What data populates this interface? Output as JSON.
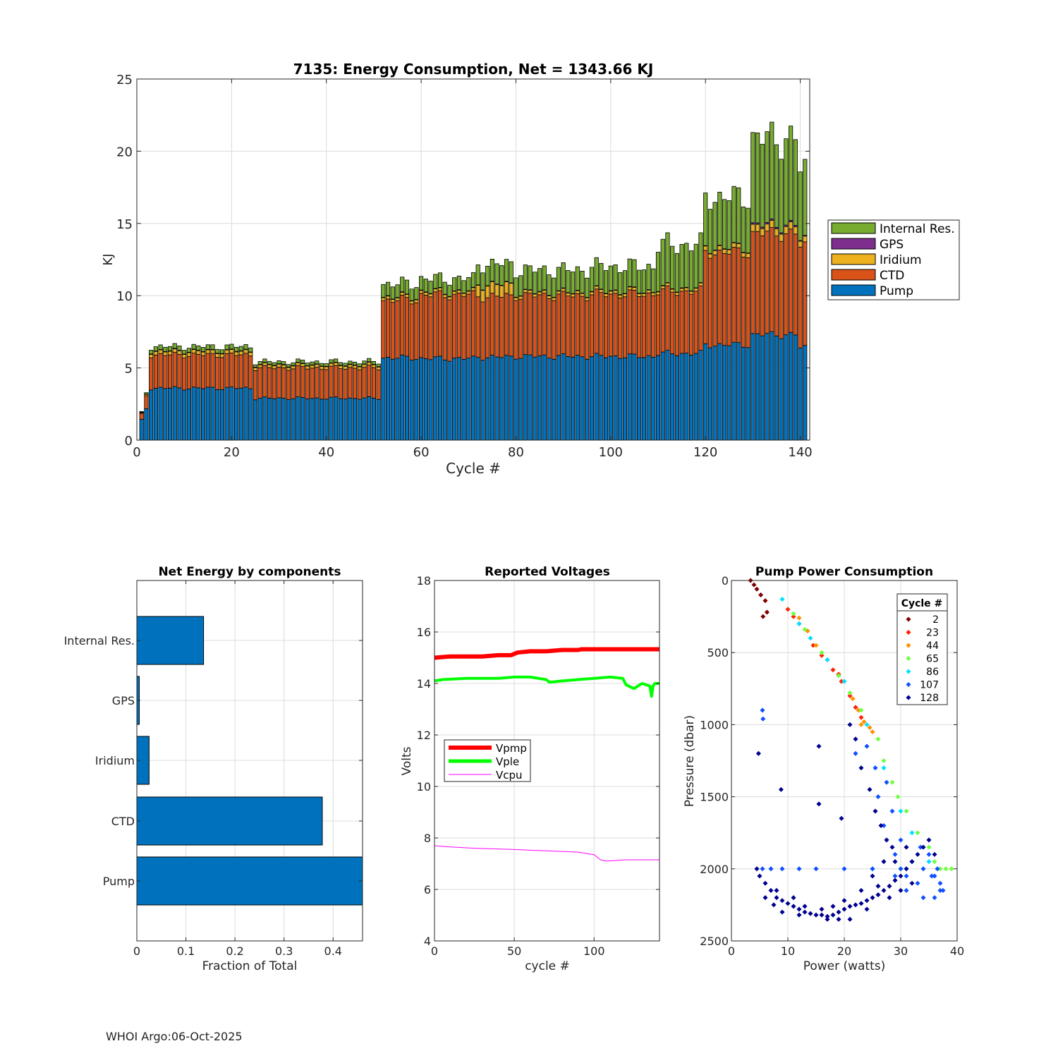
{
  "footer": "WHOI Argo:06-Oct-2025",
  "colors": {
    "pump": "#0072BD",
    "ctd": "#D95319",
    "iridium": "#EDB120",
    "gps": "#7E2F8E",
    "internal": "#77AC30",
    "vpmp": "#FF0000",
    "vple": "#00FF00",
    "vcpu": "#FF00FF"
  },
  "chart_data": [
    {
      "type": "bar",
      "stacked": true,
      "title": "7135: Energy Consumption,  Net = 1343.66 KJ",
      "xlabel": "Cycle #",
      "ylabel": "KJ",
      "xlim": [
        0,
        142
      ],
      "ylim": [
        0,
        25
      ],
      "xticks": [
        0,
        20,
        40,
        60,
        80,
        100,
        120,
        140
      ],
      "yticks": [
        0,
        5,
        10,
        15,
        20,
        25
      ],
      "legend": [
        "Internal Res.",
        "GPS",
        "Iridium",
        "CTD",
        "Pump"
      ],
      "legend_position": "right",
      "grid": true,
      "segments": [
        {
          "from": 1,
          "to": 1,
          "pump": 1.4,
          "ctd": 0.4,
          "iridium": 0.05,
          "gps": 0.02,
          "internal": 0.05
        },
        {
          "from": 2,
          "to": 2,
          "pump": 2.2,
          "ctd": 0.9,
          "iridium": 0.1,
          "gps": 0.02,
          "internal": 0.1
        },
        {
          "from": 3,
          "to": 24,
          "pump": 3.6,
          "ctd": 2.3,
          "iridium": 0.25,
          "gps": 0.03,
          "internal": 0.3
        },
        {
          "from": 25,
          "to": 51,
          "pump": 2.9,
          "ctd": 2.1,
          "iridium": 0.2,
          "gps": 0.03,
          "internal": 0.2
        },
        {
          "from": 52,
          "to": 59,
          "pump": 5.7,
          "ctd": 4.0,
          "iridium": 0.2,
          "gps": 0.03,
          "internal": 0.9
        },
        {
          "from": 60,
          "to": 71,
          "pump": 5.65,
          "ctd": 4.4,
          "iridium": 0.2,
          "gps": 0.03,
          "internal": 0.9
        },
        {
          "from": 72,
          "to": 79,
          "pump": 5.75,
          "ctd": 4.2,
          "iridium": 0.8,
          "gps": 0.03,
          "internal": 1.4
        },
        {
          "from": 80,
          "to": 95,
          "pump": 5.8,
          "ctd": 4.2,
          "iridium": 0.2,
          "gps": 0.03,
          "internal": 1.55
        },
        {
          "from": 96,
          "to": 109,
          "pump": 5.8,
          "ctd": 4.3,
          "iridium": 0.2,
          "gps": 0.03,
          "internal": 1.7
        },
        {
          "from": 110,
          "to": 119,
          "pump": 6.0,
          "ctd": 4.3,
          "iridium": 0.2,
          "gps": 0.03,
          "internal": 3.0
        },
        {
          "from": 120,
          "to": 129,
          "pump": 6.6,
          "ctd": 6.4,
          "iridium": 0.3,
          "gps": 0.03,
          "internal": 3.5
        },
        {
          "from": 130,
          "to": 139,
          "pump": 7.3,
          "ctd": 7.0,
          "iridium": 0.5,
          "gps": 0.1,
          "internal": 6.0
        },
        {
          "from": 140,
          "to": 141,
          "pump": 6.4,
          "ctd": 7.0,
          "iridium": 0.4,
          "gps": 0.05,
          "internal": 4.8
        }
      ]
    },
    {
      "type": "bar",
      "orientation": "horizontal",
      "title": "Net Energy by components",
      "xlabel": "Fraction of Total",
      "ylabel": "",
      "xlim": [
        0,
        0.46
      ],
      "xticks": [
        0,
        0.1,
        0.2,
        0.3,
        0.4
      ],
      "categories": [
        "Internal Res.",
        "GPS",
        "Iridium",
        "CTD",
        "Pump"
      ],
      "values": [
        0.136,
        0.005,
        0.025,
        0.378,
        0.46
      ],
      "grid": true
    },
    {
      "type": "line",
      "title": "Reported Voltages",
      "xlabel": "cycle #",
      "ylabel": "Volts",
      "xlim": [
        0,
        141
      ],
      "ylim": [
        4,
        18
      ],
      "xticks": [
        0,
        50,
        100
      ],
      "yticks": [
        4,
        6,
        8,
        10,
        12,
        14,
        16,
        18
      ],
      "legend_position": "middle-left",
      "grid": true,
      "series": [
        {
          "name": "Vpmp",
          "x": [
            0,
            10,
            20,
            30,
            40,
            48,
            52,
            60,
            70,
            80,
            90,
            92,
            100,
            141
          ],
          "y": [
            15.0,
            15.05,
            15.05,
            15.05,
            15.1,
            15.1,
            15.2,
            15.25,
            15.25,
            15.3,
            15.3,
            15.33,
            15.33,
            15.33
          ]
        },
        {
          "name": "Vple",
          "x": [
            0,
            5,
            20,
            40,
            50,
            60,
            70,
            72,
            80,
            90,
            100,
            110,
            118,
            120,
            125,
            130,
            135,
            136,
            137,
            138,
            141
          ],
          "y": [
            14.1,
            14.15,
            14.2,
            14.2,
            14.25,
            14.25,
            14.15,
            14.05,
            14.1,
            14.15,
            14.2,
            14.25,
            14.2,
            13.95,
            13.8,
            14.0,
            13.9,
            13.5,
            13.9,
            14.0,
            14.0
          ]
        },
        {
          "name": "Vcpu",
          "x": [
            0,
            10,
            25,
            50,
            70,
            90,
            100,
            104,
            108,
            120,
            141
          ],
          "y": [
            7.7,
            7.65,
            7.6,
            7.55,
            7.5,
            7.45,
            7.35,
            7.15,
            7.1,
            7.15,
            7.15
          ]
        }
      ]
    },
    {
      "type": "scatter",
      "title": "Pump Power Consumption",
      "xlabel": "Power (watts)",
      "ylabel": "Pressure (dbar)",
      "xlim": [
        0,
        40
      ],
      "ylim": [
        0,
        2500
      ],
      "y_reversed": true,
      "xticks": [
        0,
        10,
        20,
        30,
        40
      ],
      "yticks": [
        0,
        500,
        1000,
        1500,
        2000,
        2500
      ],
      "legend_title": "Cycle #",
      "legend_position": "top-right",
      "legend": [
        "2",
        "23",
        "44",
        "65",
        "86",
        "107",
        "128"
      ],
      "legend_colors": [
        "#800000",
        "#FF2000",
        "#FF9000",
        "#70FF40",
        "#00E0FF",
        "#1050FF",
        "#000090"
      ],
      "grid": true,
      "series": [
        {
          "name": "2",
          "points": [
            [
              3.4,
              0
            ],
            [
              4.0,
              30
            ],
            [
              4.5,
              60
            ],
            [
              5.2,
              100
            ],
            [
              6.0,
              140
            ],
            [
              5.6,
              250
            ],
            [
              6.3,
              220
            ]
          ]
        },
        {
          "name": "23",
          "points": [
            [
              10,
              200
            ],
            [
              11,
              250
            ],
            [
              12,
              300
            ],
            [
              14.5,
              450
            ],
            [
              16,
              520
            ],
            [
              18,
              620
            ],
            [
              19,
              650
            ],
            [
              19.5,
              700
            ],
            [
              21,
              800
            ],
            [
              22,
              880
            ],
            [
              23,
              950
            ]
          ]
        },
        {
          "name": "44",
          "points": [
            [
              12,
              260
            ],
            [
              13.5,
              350
            ],
            [
              15,
              450
            ],
            [
              17,
              550
            ],
            [
              20,
              700
            ],
            [
              21.5,
              820
            ],
            [
              22.5,
              900
            ],
            [
              23.5,
              980
            ],
            [
              24.5,
              1020
            ],
            [
              25,
              1050
            ],
            [
              23,
              1000
            ]
          ]
        },
        {
          "name": "65",
          "points": [
            [
              11,
              230
            ],
            [
              13,
              340
            ],
            [
              16,
              500
            ],
            [
              19,
              660
            ],
            [
              21,
              780
            ],
            [
              23,
              900
            ],
            [
              26,
              1100
            ],
            [
              27,
              1250
            ],
            [
              28.5,
              1400
            ],
            [
              29.5,
              1500
            ],
            [
              31,
              1600
            ],
            [
              33,
              1750
            ],
            [
              35,
              1850
            ],
            [
              36,
              1950
            ],
            [
              37,
              2000
            ],
            [
              38,
              2000
            ],
            [
              39,
              2000
            ]
          ]
        },
        {
          "name": "86",
          "points": [
            [
              9,
              130
            ],
            [
              12,
              300
            ],
            [
              14,
              400
            ],
            [
              17,
              550
            ],
            [
              20,
              700
            ],
            [
              24,
              1000
            ],
            [
              27,
              1300
            ],
            [
              30,
              1600
            ],
            [
              32,
              1750
            ],
            [
              34,
              1850
            ],
            [
              35,
              1950
            ],
            [
              30,
              2000
            ],
            [
              25,
              2000
            ]
          ]
        },
        {
          "name": "107",
          "points": [
            [
              5.5,
              2000
            ],
            [
              7,
              2000
            ],
            [
              9,
              2000
            ],
            [
              12,
              2000
            ],
            [
              15,
              2000
            ],
            [
              20,
              2000
            ],
            [
              25,
              2000
            ],
            [
              30,
              2000
            ],
            [
              34,
              2000
            ],
            [
              36,
              2050
            ],
            [
              37,
              2100
            ],
            [
              37,
              2150
            ],
            [
              36,
              2200
            ],
            [
              33,
              2100
            ],
            [
              31,
              2050
            ],
            [
              29,
              1900
            ],
            [
              27,
              1700
            ],
            [
              26,
              1500
            ],
            [
              25.5,
              1300
            ],
            [
              27.5,
              1400
            ],
            [
              5.5,
              900
            ],
            [
              5.6,
              960
            ],
            [
              30,
              1800
            ],
            [
              32,
              1950
            ],
            [
              28.5,
              1600
            ],
            [
              33.5,
              1850
            ],
            [
              35.5,
              2050
            ],
            [
              34,
              2200
            ],
            [
              31,
              2150
            ],
            [
              29,
              2050
            ],
            [
              22,
              1200
            ],
            [
              24,
              1150
            ],
            [
              35,
              1900
            ],
            [
              37.5,
              2150
            ],
            [
              36.5,
              2000
            ]
          ]
        },
        {
          "name": "128",
          "points": [
            [
              4.5,
              2000
            ],
            [
              5,
              2050
            ],
            [
              6,
              2100
            ],
            [
              7,
              2150
            ],
            [
              8,
              2200
            ],
            [
              9,
              2220
            ],
            [
              10,
              2240
            ],
            [
              11,
              2260
            ],
            [
              12,
              2280
            ],
            [
              13,
              2300
            ],
            [
              14,
              2310
            ],
            [
              15,
              2320
            ],
            [
              16,
              2320
            ],
            [
              17,
              2330
            ],
            [
              18,
              2320
            ],
            [
              19,
              2300
            ],
            [
              20,
              2280
            ],
            [
              21,
              2260
            ],
            [
              22,
              2250
            ],
            [
              23,
              2240
            ],
            [
              24,
              2220
            ],
            [
              25,
              2200
            ],
            [
              26,
              2180
            ],
            [
              27,
              2150
            ],
            [
              28,
              2120
            ],
            [
              29,
              2080
            ],
            [
              30,
              2050
            ],
            [
              31,
              2000
            ],
            [
              32,
              1950
            ],
            [
              33,
              1900
            ],
            [
              34,
              1850
            ],
            [
              35,
              1800
            ],
            [
              36,
              1900
            ],
            [
              4.8,
              1200
            ],
            [
              8.8,
              1450
            ],
            [
              15.5,
              1550
            ],
            [
              15.5,
              1150
            ],
            [
              19.5,
              1650
            ],
            [
              21,
              1000
            ],
            [
              22,
              1100
            ],
            [
              23,
              1300
            ],
            [
              24.5,
              1450
            ],
            [
              25.5,
              1600
            ],
            [
              26.5,
              1700
            ],
            [
              27.5,
              1800
            ],
            [
              28.5,
              1850
            ],
            [
              8,
              2150
            ],
            [
              11,
              2200
            ],
            [
              13,
              2260
            ],
            [
              18,
              2260
            ],
            [
              20,
              2220
            ],
            [
              23,
              2150
            ],
            [
              26,
              2120
            ],
            [
              28,
              2200
            ],
            [
              30,
              2150
            ],
            [
              32,
              2100
            ],
            [
              9,
              2300
            ],
            [
              12,
              2320
            ],
            [
              16,
              2280
            ],
            [
              25,
              2050
            ],
            [
              27,
              1950
            ],
            [
              29,
              1950
            ],
            [
              31,
              1850
            ],
            [
              6,
              2200
            ],
            [
              7.5,
              2250
            ],
            [
              17,
              2350
            ],
            [
              19,
              2350
            ],
            [
              21,
              2350
            ],
            [
              24,
              2280
            ]
          ]
        }
      ]
    }
  ]
}
